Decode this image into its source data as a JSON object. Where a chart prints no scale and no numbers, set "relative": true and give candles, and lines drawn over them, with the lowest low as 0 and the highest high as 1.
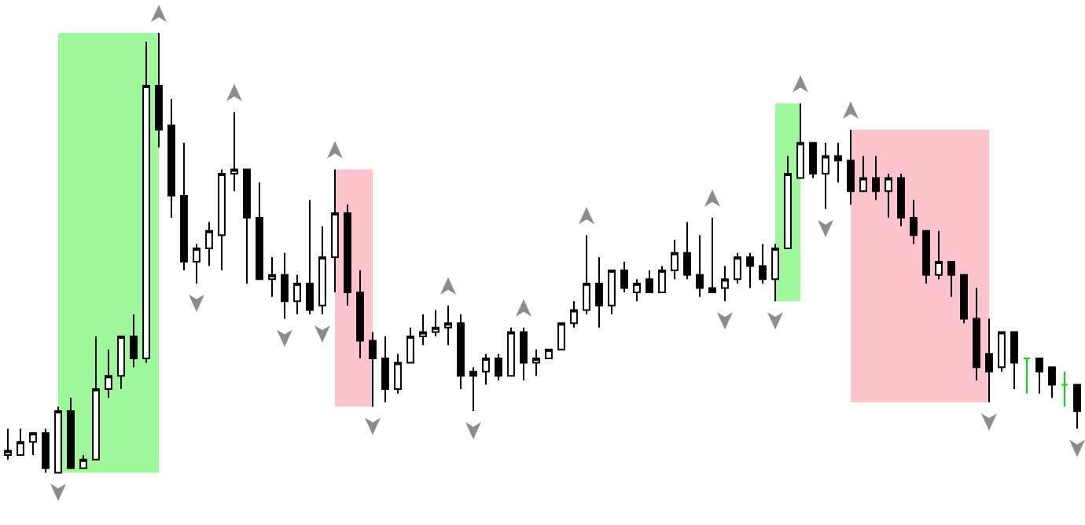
{
  "chart_data": {
    "type": "candlestick",
    "relative": true,
    "categories": [
      null,
      null,
      null,
      null,
      null,
      null,
      null,
      null,
      null,
      null,
      null,
      null,
      null,
      null,
      null,
      null,
      null,
      null,
      null,
      null,
      null,
      null,
      null,
      null,
      null,
      null,
      null,
      null,
      null,
      null,
      null,
      null,
      null,
      null,
      null,
      null,
      null,
      null,
      null,
      null,
      null,
      null,
      null,
      null,
      null,
      null,
      null,
      null,
      null,
      null,
      null,
      null,
      null,
      null,
      null,
      null,
      null,
      null,
      null,
      null,
      null,
      null,
      null,
      null,
      null,
      null,
      null,
      null,
      null,
      null,
      null,
      null,
      null,
      null,
      null,
      null,
      null,
      null,
      null,
      null,
      null,
      null,
      null,
      null,
      null,
      null
    ],
    "ohlc": [
      [
        0.04,
        0.1,
        0.03,
        0.05
      ],
      [
        0.04,
        0.1,
        0.04,
        0.07
      ],
      [
        0.07,
        0.09,
        0.04,
        0.09
      ],
      [
        0.09,
        0.1,
        0.0,
        0.01
      ],
      [
        0.0,
        0.15,
        0.0,
        0.14
      ],
      [
        0.14,
        0.17,
        0.01,
        0.01
      ],
      [
        0.01,
        0.04,
        0.01,
        0.03
      ],
      [
        0.03,
        0.31,
        0.03,
        0.19
      ],
      [
        0.19,
        0.28,
        0.17,
        0.22
      ],
      [
        0.22,
        0.31,
        0.19,
        0.31
      ],
      [
        0.31,
        0.36,
        0.24,
        0.26
      ],
      [
        0.26,
        0.98,
        0.25,
        0.88
      ],
      [
        0.88,
        1.0,
        0.74,
        0.78
      ],
      [
        0.79,
        0.85,
        0.58,
        0.63
      ],
      [
        0.63,
        0.75,
        0.46,
        0.48
      ],
      [
        0.48,
        0.52,
        0.43,
        0.51
      ],
      [
        0.51,
        0.57,
        0.47,
        0.55
      ],
      [
        0.54,
        0.69,
        0.46,
        0.68
      ],
      [
        0.68,
        0.82,
        0.64,
        0.69
      ],
      [
        0.69,
        0.69,
        0.43,
        0.58
      ],
      [
        0.58,
        0.66,
        0.44,
        0.44
      ],
      [
        0.44,
        0.49,
        0.4,
        0.45
      ],
      [
        0.45,
        0.5,
        0.35,
        0.39
      ],
      [
        0.39,
        0.45,
        0.36,
        0.43
      ],
      [
        0.43,
        0.62,
        0.36,
        0.37
      ],
      [
        0.38,
        0.56,
        0.36,
        0.49
      ],
      [
        0.49,
        0.69,
        0.41,
        0.59
      ],
      [
        0.59,
        0.61,
        0.38,
        0.41
      ],
      [
        0.41,
        0.46,
        0.26,
        0.3
      ],
      [
        0.3,
        0.32,
        0.15,
        0.26
      ],
      [
        0.26,
        0.31,
        0.16,
        0.19
      ],
      [
        0.19,
        0.27,
        0.18,
        0.25
      ],
      [
        0.25,
        0.33,
        0.25,
        0.31
      ],
      [
        0.31,
        0.36,
        0.29,
        0.32
      ],
      [
        0.32,
        0.37,
        0.31,
        0.33
      ],
      [
        0.33,
        0.38,
        0.29,
        0.34
      ],
      [
        0.34,
        0.36,
        0.19,
        0.22
      ],
      [
        0.23,
        0.24,
        0.14,
        0.22
      ],
      [
        0.23,
        0.27,
        0.2,
        0.26
      ],
      [
        0.26,
        0.27,
        0.21,
        0.22
      ],
      [
        0.22,
        0.33,
        0.22,
        0.32
      ],
      [
        0.32,
        0.33,
        0.21,
        0.25
      ],
      [
        0.25,
        0.28,
        0.22,
        0.26
      ],
      [
        0.26,
        0.28,
        0.26,
        0.28
      ],
      [
        0.28,
        0.34,
        0.28,
        0.34
      ],
      [
        0.34,
        0.39,
        0.33,
        0.37
      ],
      [
        0.37,
        0.54,
        0.36,
        0.43
      ],
      [
        0.43,
        0.49,
        0.33,
        0.38
      ],
      [
        0.38,
        0.46,
        0.36,
        0.46
      ],
      [
        0.46,
        0.48,
        0.41,
        0.42
      ],
      [
        0.41,
        0.44,
        0.39,
        0.43
      ],
      [
        0.44,
        0.46,
        0.41,
        0.41
      ],
      [
        0.41,
        0.47,
        0.41,
        0.46
      ],
      [
        0.46,
        0.53,
        0.44,
        0.5
      ],
      [
        0.5,
        0.57,
        0.44,
        0.45
      ],
      [
        0.45,
        0.54,
        0.4,
        0.42
      ],
      [
        0.42,
        0.58,
        0.41,
        0.41
      ],
      [
        0.42,
        0.47,
        0.39,
        0.44
      ],
      [
        0.44,
        0.5,
        0.43,
        0.49
      ],
      [
        0.49,
        0.5,
        0.42,
        0.47
      ],
      [
        0.47,
        0.52,
        0.43,
        0.44
      ],
      [
        0.44,
        0.52,
        0.39,
        0.51
      ],
      [
        0.51,
        0.72,
        0.51,
        0.68
      ],
      [
        0.67,
        0.84,
        0.67,
        0.75
      ],
      [
        0.75,
        0.75,
        0.67,
        0.68
      ],
      [
        0.68,
        0.75,
        0.6,
        0.72
      ],
      [
        0.72,
        0.75,
        0.66,
        0.71
      ],
      [
        0.71,
        0.78,
        0.61,
        0.64
      ],
      [
        0.64,
        0.72,
        0.64,
        0.67
      ],
      [
        0.67,
        0.72,
        0.62,
        0.64
      ],
      [
        0.64,
        0.68,
        0.58,
        0.67
      ],
      [
        0.67,
        0.68,
        0.56,
        0.58
      ],
      [
        0.58,
        0.62,
        0.52,
        0.54
      ],
      [
        0.55,
        0.55,
        0.43,
        0.45
      ],
      [
        0.45,
        0.55,
        0.44,
        0.48
      ],
      [
        0.48,
        0.48,
        0.4,
        0.45
      ],
      [
        0.45,
        0.45,
        0.34,
        0.35
      ],
      [
        0.35,
        0.42,
        0.21,
        0.24
      ],
      [
        0.27,
        0.35,
        0.16,
        0.23
      ],
      [
        0.24,
        0.32,
        0.23,
        0.32
      ],
      [
        0.32,
        0.32,
        0.19,
        0.25
      ],
      [
        0.26,
        0.26,
        0.18,
        0.26
      ],
      [
        0.26,
        0.26,
        0.18,
        0.23
      ],
      [
        0.24,
        0.24,
        0.17,
        0.2
      ],
      [
        0.2,
        0.23,
        0.15,
        0.2
      ],
      [
        0.2,
        0.2,
        0.1,
        0.14
      ]
    ],
    "colors": [
      null,
      null,
      null,
      null,
      null,
      null,
      null,
      null,
      null,
      null,
      null,
      null,
      null,
      null,
      null,
      null,
      null,
      null,
      null,
      null,
      null,
      null,
      null,
      null,
      null,
      null,
      null,
      null,
      null,
      null,
      null,
      null,
      null,
      null,
      null,
      null,
      null,
      null,
      null,
      null,
      null,
      null,
      null,
      null,
      null,
      null,
      null,
      null,
      null,
      null,
      null,
      null,
      null,
      null,
      null,
      null,
      null,
      null,
      null,
      null,
      null,
      null,
      null,
      null,
      null,
      null,
      null,
      null,
      null,
      null,
      null,
      null,
      null,
      null,
      null,
      null,
      null,
      null,
      null,
      null,
      null,
      "#00e000",
      null,
      null,
      "#00e000",
      null
    ]
  }
}
